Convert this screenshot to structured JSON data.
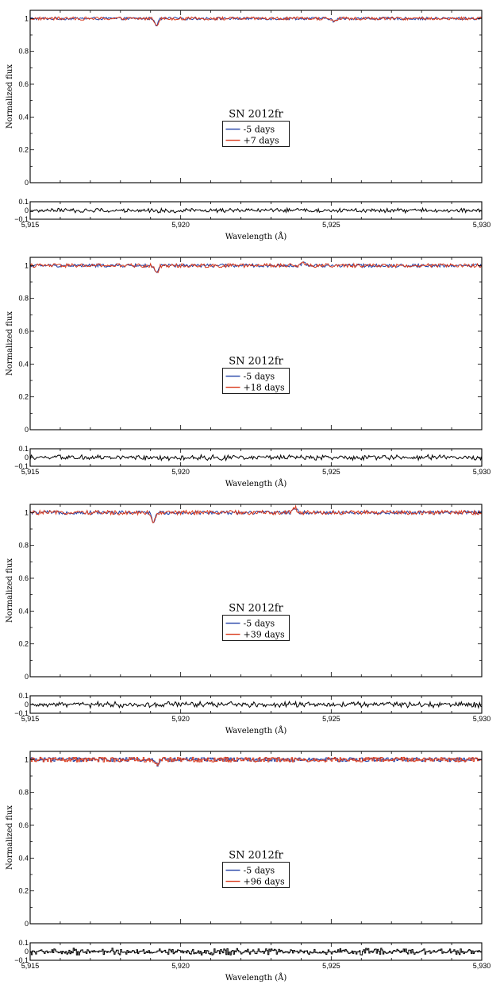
{
  "colors": {
    "reference": "#1f3fa6",
    "comparison": "#d93a1c",
    "residual": "#000000"
  },
  "chart_data": [
    {
      "type": "line",
      "title": "SN 2012fr",
      "xlabel": "Wavelength (Å)",
      "ylabel": "Normalized flux",
      "xlim": [
        5915,
        5930
      ],
      "ylim": [
        0,
        1.05
      ],
      "xticks": [
        5915,
        5920,
        5925,
        5930
      ],
      "xtick_labels": [
        "5,915",
        "5,920",
        "5,925",
        "5,930"
      ],
      "yticks": [
        0,
        0.2,
        0.4,
        0.6,
        0.8,
        1
      ],
      "ytick_labels": [
        "0",
        "0.2",
        "0.4",
        "0.6",
        "0.8",
        "1"
      ],
      "residual_ylim": [
        -0.1,
        0.1
      ],
      "residual_yticks": [
        -0.1,
        0,
        0.1
      ],
      "residual_ytick_labels": [
        "−0.1",
        "0",
        "0.1"
      ],
      "series": [
        {
          "name": "-5 days",
          "color": "#1f3fa6",
          "baseline": 1.0
        },
        {
          "name": "+7 days",
          "color": "#d93a1c",
          "baseline": 1.0
        }
      ],
      "features": [
        {
          "x": 5919.2,
          "depth": 0.04
        },
        {
          "x": 5925.1,
          "depth": 0.02
        }
      ],
      "noise": 0.008,
      "grid": false,
      "legend_position": "center"
    },
    {
      "type": "line",
      "title": "SN 2012fr",
      "xlabel": "Wavelength (Å)",
      "ylabel": "Normalized flux",
      "xlim": [
        5915,
        5930
      ],
      "ylim": [
        0,
        1.05
      ],
      "xticks": [
        5915,
        5920,
        5925,
        5930
      ],
      "xtick_labels": [
        "5,915",
        "5,920",
        "5,925",
        "5,930"
      ],
      "yticks": [
        0,
        0.2,
        0.4,
        0.6,
        0.8,
        1
      ],
      "ytick_labels": [
        "0",
        "0.2",
        "0.4",
        "0.6",
        "0.8",
        "1"
      ],
      "residual_ylim": [
        -0.1,
        0.1
      ],
      "residual_yticks": [
        -0.1,
        0,
        0.1
      ],
      "residual_ytick_labels": [
        "−0.1",
        "0",
        "0.1"
      ],
      "series": [
        {
          "name": "-5 days",
          "color": "#1f3fa6",
          "baseline": 1.0
        },
        {
          "name": "+18 days",
          "color": "#d93a1c",
          "baseline": 1.0
        }
      ],
      "features": [
        {
          "x": 5919.2,
          "depth": 0.05
        },
        {
          "x": 5924.1,
          "depth": -0.02
        }
      ],
      "noise": 0.01,
      "grid": false,
      "legend_position": "center"
    },
    {
      "type": "line",
      "title": "SN 2012fr",
      "xlabel": "Wavelength (Å)",
      "ylabel": "Normalized flux",
      "xlim": [
        5915,
        5930
      ],
      "ylim": [
        0,
        1.05
      ],
      "xticks": [
        5915,
        5920,
        5925,
        5930
      ],
      "xtick_labels": [
        "5,915",
        "5,920",
        "5,925",
        "5,930"
      ],
      "yticks": [
        0,
        0.2,
        0.4,
        0.6,
        0.8,
        1
      ],
      "ytick_labels": [
        "0",
        "0.2",
        "0.4",
        "0.6",
        "0.8",
        "1"
      ],
      "residual_ylim": [
        -0.1,
        0.1
      ],
      "residual_yticks": [
        -0.1,
        0,
        0.1
      ],
      "residual_ytick_labels": [
        "−0.1",
        "0",
        "0.1"
      ],
      "series": [
        {
          "name": "-5 days",
          "color": "#1f3fa6",
          "baseline": 1.0
        },
        {
          "name": "+39 days",
          "color": "#d93a1c",
          "baseline": 1.0
        }
      ],
      "features": [
        {
          "x": 5919.1,
          "depth": 0.06
        },
        {
          "x": 5923.8,
          "depth": -0.03
        }
      ],
      "noise": 0.011,
      "grid": false,
      "legend_position": "center"
    },
    {
      "type": "line",
      "title": "SN 2012fr",
      "xlabel": "Wavelength (Å)",
      "ylabel": "Normalized flux",
      "xlim": [
        5915,
        5930
      ],
      "ylim": [
        0,
        1.05
      ],
      "xticks": [
        5915,
        5920,
        5925,
        5930
      ],
      "xtick_labels": [
        "5,915",
        "5,920",
        "5,925",
        "5,930"
      ],
      "yticks": [
        0,
        0.2,
        0.4,
        0.6,
        0.8,
        1
      ],
      "ytick_labels": [
        "0",
        "0.2",
        "0.4",
        "0.6",
        "0.8",
        "1"
      ],
      "residual_ylim": [
        -0.1,
        0.1
      ],
      "residual_yticks": [
        -0.1,
        0,
        0.1
      ],
      "residual_ytick_labels": [
        "−0.1",
        "0",
        "0.1"
      ],
      "series": [
        {
          "name": "-5 days",
          "color": "#1f3fa6",
          "baseline": 1.0
        },
        {
          "name": "+96 days",
          "color": "#d93a1c",
          "baseline": 1.0
        }
      ],
      "features": [
        {
          "x": 5919.2,
          "depth": 0.03
        }
      ],
      "noise": 0.012,
      "grid": false,
      "legend_position": "center"
    }
  ]
}
